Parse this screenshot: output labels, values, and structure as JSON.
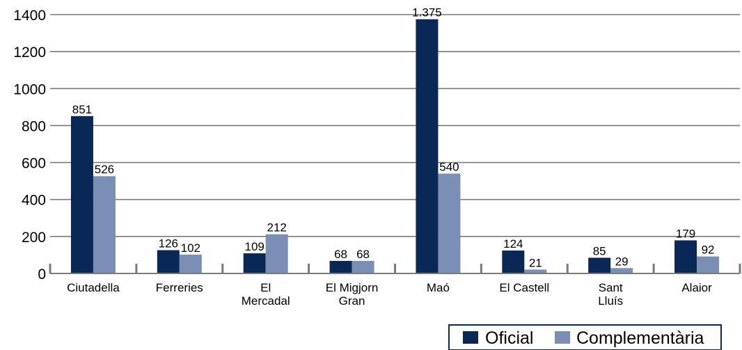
{
  "chart_data": {
    "type": "bar",
    "categories": [
      "Ciutadella",
      "Ferreries",
      "El\nMercadal",
      "El Migjorn\nGran",
      "Maó",
      "El Castell",
      "Sant\nLluís",
      "Alaior"
    ],
    "series": [
      {
        "name": "Oficial",
        "values": [
          851,
          126,
          109,
          68,
          1375,
          124,
          85,
          179
        ],
        "labels": [
          "851",
          "126",
          "109",
          "68",
          "1.375",
          "124",
          "85",
          "179"
        ],
        "color": "#0a2856"
      },
      {
        "name": "Complementària",
        "values": [
          526,
          102,
          212,
          68,
          540,
          21,
          29,
          92
        ],
        "labels": [
          "526",
          "102",
          "212",
          "68",
          "540",
          "21",
          "29",
          "92"
        ],
        "color": "#7b8fb5"
      }
    ],
    "yticks": [
      "0",
      "200",
      "400",
      "600",
      "800",
      "1000",
      "1200",
      "1400"
    ],
    "ylim": [
      0,
      1400
    ],
    "grid": true,
    "legend_position": "bottom-right"
  }
}
